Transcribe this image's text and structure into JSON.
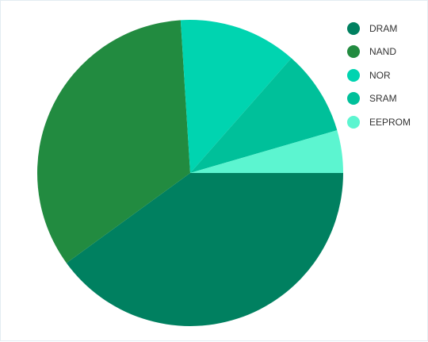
{
  "chart_data": {
    "type": "pie",
    "categories": [
      "DRAM",
      "NAND",
      "NOR",
      "SRAM",
      "EEPROM"
    ],
    "values": [
      40,
      34,
      12.5,
      9,
      4.5
    ],
    "colors": [
      "#008060",
      "#228b40",
      "#00d4b0",
      "#00c09a",
      "#5cf5d0"
    ],
    "start_angle_deg": 0,
    "direction": "clockwise",
    "legend_position": "top-right",
    "title": ""
  }
}
